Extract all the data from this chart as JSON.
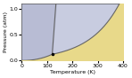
{
  "xlabel": "Temperature (K)",
  "ylabel": "Pressure (atm)",
  "xlim": [
    0,
    400
  ],
  "ylim": [
    0,
    1.1
  ],
  "xticks": [
    0,
    100,
    200,
    300,
    400
  ],
  "yticks": [
    0.0,
    0.5,
    1.0
  ],
  "gas_color": "#e8d98a",
  "solid_color": "#b8bcd4",
  "liquid_color": "#c8cce0",
  "boundary_color": "#666666",
  "bg_color": "#e8d98a",
  "T_triple": 120,
  "P_triple": 0.12,
  "T_crit": 380,
  "P_crit": 1.05,
  "figsize": [
    1.48,
    0.88
  ]
}
